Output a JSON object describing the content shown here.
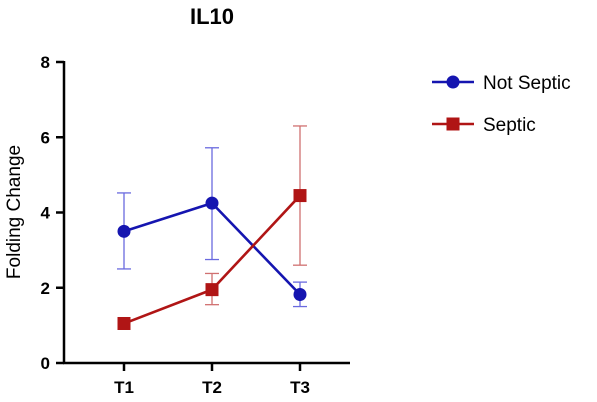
{
  "chart_data": {
    "type": "line",
    "title": "IL10",
    "xlabel": "",
    "ylabel": "Folding Change",
    "categories": [
      "T1",
      "T2",
      "T3"
    ],
    "ylim": [
      0,
      8
    ],
    "yticks": [
      0,
      2,
      4,
      6,
      8
    ],
    "grid": false,
    "legend_position": "right",
    "series": [
      {
        "name": "Not Septic",
        "marker": "circle",
        "color": "#1515b0",
        "errorbar_color": "#6a6adf",
        "values": [
          3.5,
          4.25,
          1.82
        ],
        "error_low": [
          2.5,
          2.75,
          1.5
        ],
        "error_high": [
          4.52,
          5.72,
          2.15
        ]
      },
      {
        "name": "Septic",
        "marker": "square",
        "color": "#b01515",
        "errorbar_color": "#d07070",
        "values": [
          1.05,
          1.95,
          4.45
        ],
        "error_low": [
          1.05,
          1.55,
          2.6
        ],
        "error_high": [
          1.05,
          2.38,
          6.3
        ]
      }
    ]
  }
}
